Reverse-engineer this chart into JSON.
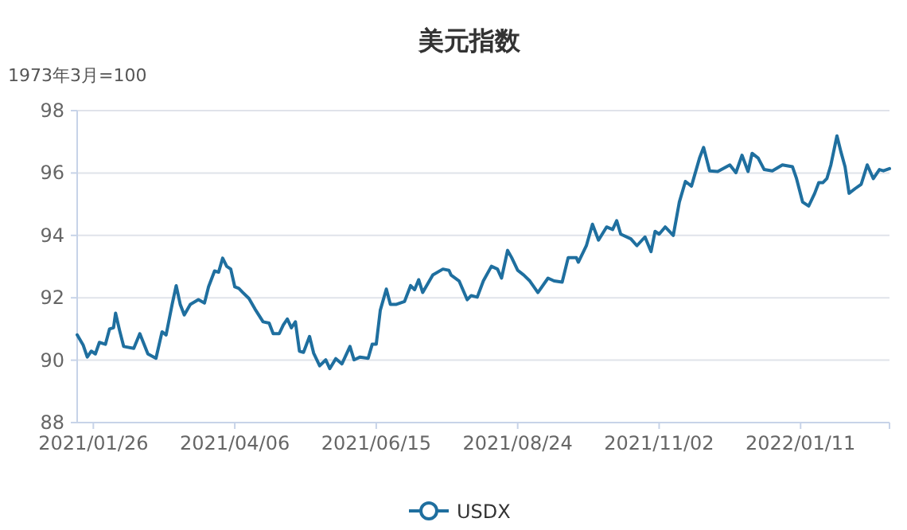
{
  "chart_data": {
    "type": "line",
    "title": "美元指数",
    "ylabel": "1973年3月=100",
    "xlim": [
      "2021-01-18",
      "2022-02-24"
    ],
    "xticks": [
      {
        "value": "2021-01-26",
        "label": "2021/01/26"
      },
      {
        "value": "2021-04-06",
        "label": "2021/04/06"
      },
      {
        "value": "2021-06-15",
        "label": "2021/06/15"
      },
      {
        "value": "2021-08-24",
        "label": "2021/08/24"
      },
      {
        "value": "2021-11-02",
        "label": "2021/11/02"
      },
      {
        "value": "2022-01-11",
        "label": "2022/01/11"
      }
    ],
    "ylim": [
      88,
      98
    ],
    "yticks": [
      88,
      90,
      92,
      94,
      96,
      98
    ],
    "grid": "y",
    "legend": "bottom",
    "x": [
      "2021-01-18",
      "2021-01-21",
      "2021-01-23",
      "2021-01-25",
      "2021-01-27",
      "2021-01-29",
      "2021-02-01",
      "2021-02-03",
      "2021-02-05",
      "2021-02-06",
      "2021-02-08",
      "2021-02-10",
      "2021-02-15",
      "2021-02-18",
      "2021-02-22",
      "2021-02-26",
      "2021-03-01",
      "2021-03-03",
      "2021-03-06",
      "2021-03-08",
      "2021-03-10",
      "2021-03-12",
      "2021-03-15",
      "2021-03-19",
      "2021-03-22",
      "2021-03-24",
      "2021-03-27",
      "2021-03-29",
      "2021-03-31",
      "2021-04-02",
      "2021-04-04",
      "2021-04-06",
      "2021-04-08",
      "2021-04-10",
      "2021-04-13",
      "2021-04-16",
      "2021-04-20",
      "2021-04-23",
      "2021-04-25",
      "2021-04-28",
      "2021-04-30",
      "2021-05-02",
      "2021-05-04",
      "2021-05-06",
      "2021-05-08",
      "2021-05-10",
      "2021-05-13",
      "2021-05-15",
      "2021-05-18",
      "2021-05-21",
      "2021-05-23",
      "2021-05-26",
      "2021-05-29",
      "2021-06-02",
      "2021-06-04",
      "2021-06-07",
      "2021-06-11",
      "2021-06-13",
      "2021-06-15",
      "2021-06-17",
      "2021-06-20",
      "2021-06-22",
      "2021-06-25",
      "2021-06-29",
      "2021-07-02",
      "2021-07-04",
      "2021-07-06",
      "2021-07-08",
      "2021-07-13",
      "2021-07-18",
      "2021-07-21",
      "2021-07-22",
      "2021-07-26",
      "2021-07-30",
      "2021-08-01",
      "2021-08-04",
      "2021-08-07",
      "2021-08-11",
      "2021-08-14",
      "2021-08-16",
      "2021-08-19",
      "2021-08-21",
      "2021-08-24",
      "2021-08-27",
      "2021-08-30",
      "2021-09-03",
      "2021-09-08",
      "2021-09-11",
      "2021-09-15",
      "2021-09-18",
      "2021-09-22",
      "2021-09-23",
      "2021-09-27",
      "2021-09-30",
      "2021-10-03",
      "2021-10-07",
      "2021-10-10",
      "2021-10-12",
      "2021-10-14",
      "2021-10-19",
      "2021-10-22",
      "2021-10-26",
      "2021-10-29",
      "2021-10-31",
      "2021-11-02",
      "2021-11-05",
      "2021-11-09",
      "2021-11-12",
      "2021-11-15",
      "2021-11-18",
      "2021-11-22",
      "2021-11-24",
      "2021-11-27",
      "2021-12-01",
      "2021-12-07",
      "2021-12-10",
      "2021-12-13",
      "2021-12-16",
      "2021-12-18",
      "2021-12-21",
      "2021-12-24",
      "2021-12-28",
      "2022-01-02",
      "2022-01-07",
      "2022-01-09",
      "2022-01-12",
      "2022-01-15",
      "2022-01-18",
      "2022-01-20",
      "2022-01-22",
      "2022-01-24",
      "2022-01-26",
      "2022-01-29",
      "2022-01-31",
      "2022-02-02",
      "2022-02-04",
      "2022-02-07",
      "2022-02-10",
      "2022-02-13",
      "2022-02-16",
      "2022-02-19",
      "2022-02-21",
      "2022-02-24"
    ],
    "series": [
      {
        "name": "USDX",
        "color": "#1f6f9f",
        "values": [
          90.81,
          90.48,
          90.1,
          90.29,
          90.2,
          90.57,
          90.51,
          91.0,
          91.04,
          91.51,
          90.95,
          90.44,
          90.38,
          90.85,
          90.2,
          90.06,
          90.91,
          90.81,
          91.79,
          92.39,
          91.79,
          91.45,
          91.79,
          91.94,
          91.83,
          92.35,
          92.86,
          92.82,
          93.27,
          93.01,
          92.92,
          92.35,
          92.3,
          92.17,
          91.98,
          91.64,
          91.23,
          91.19,
          90.85,
          90.85,
          91.13,
          91.32,
          91.04,
          91.23,
          90.29,
          90.25,
          90.76,
          90.23,
          89.82,
          90.01,
          89.73,
          90.05,
          89.88,
          90.44,
          90.01,
          90.1,
          90.06,
          90.51,
          90.51,
          91.6,
          92.28,
          91.79,
          91.79,
          91.88,
          92.39,
          92.26,
          92.58,
          92.17,
          92.73,
          92.92,
          92.88,
          92.73,
          92.54,
          91.94,
          92.07,
          92.02,
          92.54,
          93.01,
          92.92,
          92.63,
          93.52,
          93.29,
          92.88,
          92.73,
          92.54,
          92.17,
          92.63,
          92.54,
          92.5,
          93.29,
          93.29,
          93.14,
          93.67,
          94.36,
          93.85,
          94.27,
          94.19,
          94.47,
          94.04,
          93.89,
          93.67,
          93.95,
          93.48,
          94.13,
          94.04,
          94.27,
          94.0,
          95.07,
          95.73,
          95.58,
          96.48,
          96.82,
          96.07,
          96.05,
          96.26,
          96.01,
          96.57,
          96.05,
          96.63,
          96.48,
          96.11,
          96.07,
          96.26,
          96.2,
          95.82,
          95.07,
          94.94,
          95.35,
          95.69,
          95.69,
          95.82,
          96.26,
          97.19,
          96.67,
          96.2,
          95.35,
          95.5,
          95.64,
          96.26,
          95.82,
          96.11,
          96.07,
          96.14
        ]
      }
    ]
  }
}
